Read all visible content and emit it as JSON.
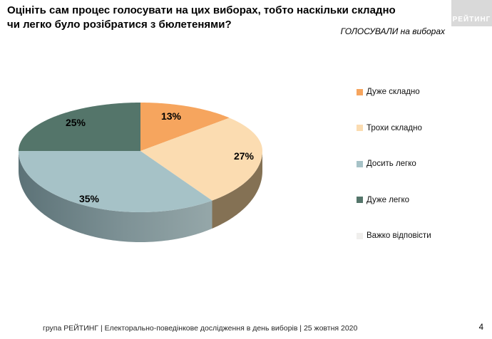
{
  "header": {
    "title": "Оцініть сам процес голосувати на цих виборах, тобто наскільки складно чи легко було розібратися з бюлетенями?",
    "subtitle": "ГОЛОСУВАЛИ на виборах",
    "logo": "РЕЙТИНГ"
  },
  "chart_data": {
    "type": "pie",
    "style": "3d",
    "title": "Оцініть сам процес голосувати на цих виборах, тобто наскільки складно чи легко було розібратися з бюлетенями?",
    "categories": [
      "Дуже складно",
      "Трохи складно",
      "Досить легко",
      "Дуже легко",
      "Важко відповісти"
    ],
    "values": [
      13,
      27,
      35,
      25,
      0
    ],
    "unit": "%",
    "start_angle_deg": 0,
    "direction": "clockwise",
    "legend_position": "right",
    "slice_colors": [
      "#F6A55E",
      "#FBDCB1",
      "#A6C2C7",
      "#54756A",
      "#F0EFED"
    ],
    "rim_colors": [
      "none",
      "#847154",
      "gradient-blue",
      "none",
      "none"
    ],
    "rim_gradient": {
      "left": "#5C7277",
      "mid": "#7E9296",
      "right": "#95A7A9"
    }
  },
  "colors": {
    "logo_background": "#D9D9D9",
    "logo_text": "#FFFFFF",
    "title_text": "#000000",
    "footer_text": "#262626",
    "background": "#FFFFFF"
  },
  "footer": {
    "source": "група РЕЙТИНГ | Електорально-поведінкове дослідження в день виборів | 25 жовтня 2020",
    "page": "4"
  }
}
